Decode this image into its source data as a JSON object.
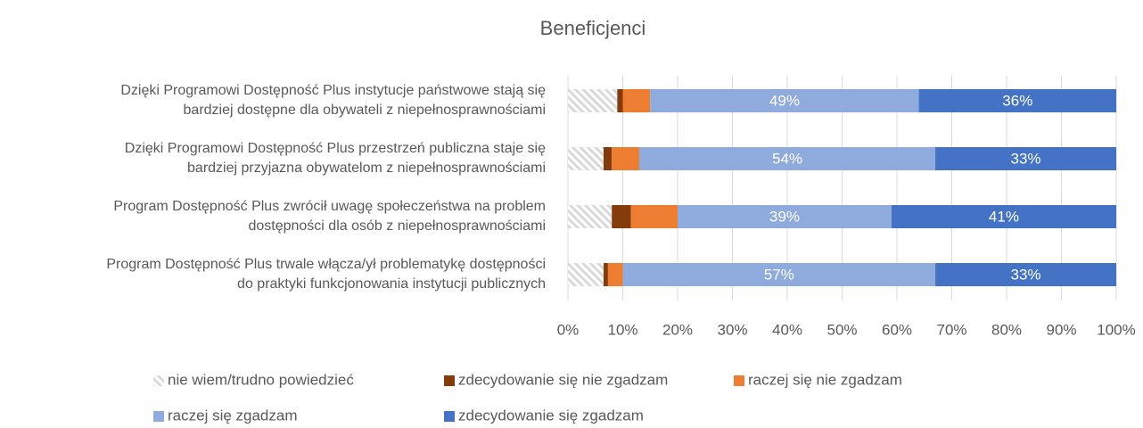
{
  "chart_data": {
    "type": "stacked_barh",
    "title": "Beneficjenci",
    "categories": [
      "Dzięki Programowi Dostępność Plus instytucje państwowe stają się\nbardziej dostępne dla obywateli z niepełnosprawnościami",
      "Dzięki Programowi Dostępność Plus przestrzeń publiczna staje się\nbardziej przyjazna obywatelom z niepełnosprawnościami",
      "Program Dostępność Plus zwrócił uwagę społeczeństwa na problem\ndostępności dla osób z niepełnosprawnościami",
      "Program Dostępność Plus trwale włącza/ył problematykę dostępności\ndo praktyki funkcjonowania instytucji publicznych"
    ],
    "series": [
      {
        "name": "nie wiem/trudno powiedzieć",
        "color": "#d9d9d9",
        "hatch": true,
        "values": [
          9,
          6.5,
          8,
          6.5
        ]
      },
      {
        "name": "zdecydowanie się nie zgadzam",
        "color": "#843c0c",
        "values": [
          1,
          1.5,
          3.5,
          0.8
        ]
      },
      {
        "name": "raczej się nie zgadzam",
        "color": "#ed7d31",
        "values": [
          5,
          5,
          8.5,
          2.7
        ]
      },
      {
        "name": "raczej się zgadzam",
        "color": "#8faadc",
        "values": [
          49,
          54,
          39,
          57
        ],
        "value_labels": [
          "49%",
          "54%",
          "39%",
          "57%"
        ]
      },
      {
        "name": "zdecydowanie się zgadzam",
        "color": "#4472c4",
        "values": [
          36,
          33,
          41,
          33
        ],
        "value_labels": [
          "36%",
          "33%",
          "41%",
          "33%"
        ]
      }
    ],
    "xlim": [
      0,
      100
    ],
    "xticks": [
      {
        "value": 0,
        "label": "0%"
      },
      {
        "value": 10,
        "label": "10%"
      },
      {
        "value": 20,
        "label": "20%"
      },
      {
        "value": 30,
        "label": "30%"
      },
      {
        "value": 40,
        "label": "40%"
      },
      {
        "value": 50,
        "label": "50%"
      },
      {
        "value": 60,
        "label": "60%"
      },
      {
        "value": 70,
        "label": "70%"
      },
      {
        "value": 80,
        "label": "80%"
      },
      {
        "value": 90,
        "label": "90%"
      },
      {
        "value": 100,
        "label": "100%"
      }
    ],
    "grid": true,
    "legend": "bottom"
  }
}
